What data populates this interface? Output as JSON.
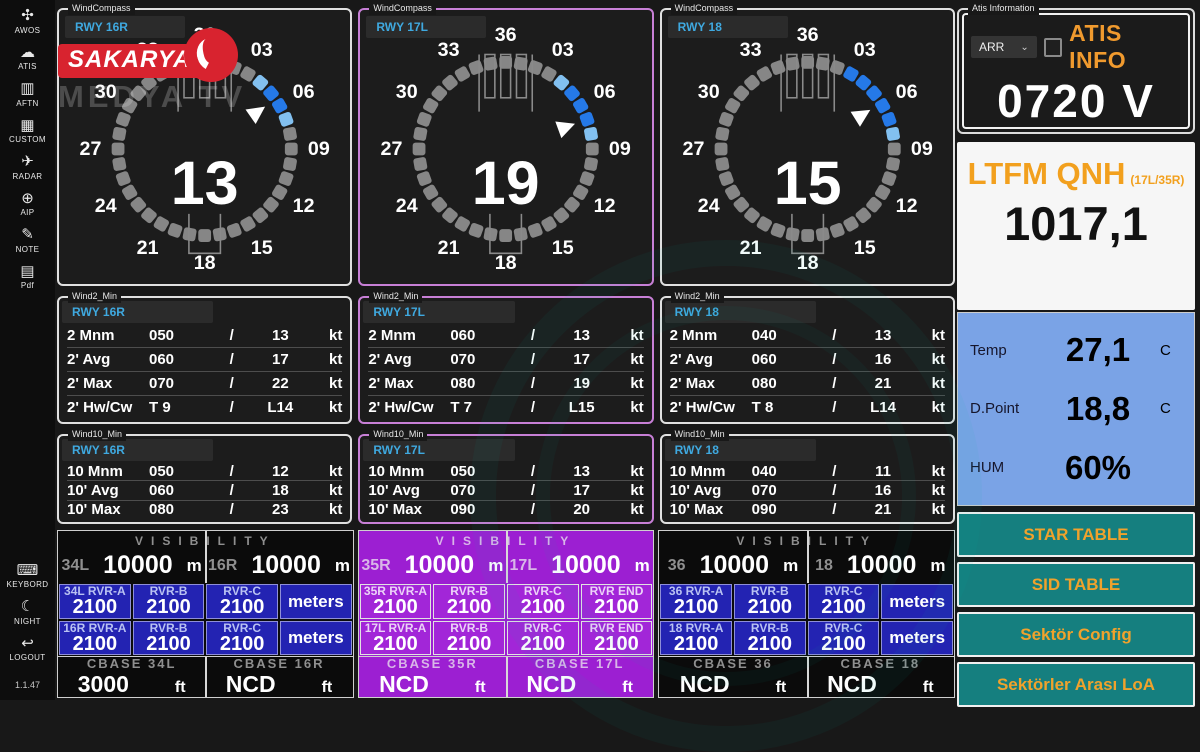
{
  "app": {
    "version": "1.1.47"
  },
  "sidebar": {
    "items": [
      {
        "label": "AWOS",
        "icon": "anemometer-icon",
        "glyph": "✣"
      },
      {
        "label": "ATIS",
        "icon": "cloud-broadcast-icon",
        "glyph": "☁"
      },
      {
        "label": "AFTN",
        "icon": "message-card-icon",
        "glyph": "▥"
      },
      {
        "label": "CUSTOM",
        "icon": "custom-settings-icon",
        "glyph": "▦"
      },
      {
        "label": "RADAR",
        "icon": "aircraft-icon",
        "glyph": "✈"
      },
      {
        "label": "AIP",
        "icon": "globe-icon",
        "glyph": "⊕"
      },
      {
        "label": "NOTE",
        "icon": "note-pencil-icon",
        "glyph": "✎"
      },
      {
        "label": "Pdf",
        "icon": "pdf-document-icon",
        "glyph": "▤"
      }
    ],
    "bottom_items": [
      {
        "label": "KEYBORD",
        "icon": "keyboard-icon",
        "glyph": "⌨"
      },
      {
        "label": "NIGHT",
        "icon": "moon-icon",
        "glyph": "☾"
      },
      {
        "label": "LOGOUT",
        "icon": "logout-person-icon",
        "glyph": "↩"
      }
    ]
  },
  "compass_labels": [
    "36",
    "03",
    "06",
    "09",
    "12",
    "15",
    "18",
    "21",
    "24",
    "27",
    "30",
    "33"
  ],
  "compasses": [
    {
      "group_label": "WindCompass",
      "runway": "RWY 16R",
      "speed": "13",
      "arrow_deg": 55,
      "segments_dark": [
        50,
        60
      ],
      "segments_light": [
        40,
        70
      ],
      "accent": "#e0e0e0"
    },
    {
      "group_label": "WindCompass",
      "runway": "RWY 17L",
      "speed": "19",
      "arrow_deg": 70,
      "segments_dark": [
        50,
        60,
        70
      ],
      "segments_light": [
        40,
        80
      ],
      "accent": "#c77fd6"
    },
    {
      "group_label": "WindCompass",
      "runway": "RWY 18",
      "speed": "15",
      "arrow_deg": 58,
      "segments_dark": [
        30,
        40,
        50,
        60,
        70
      ],
      "segments_light": [
        80
      ],
      "accent": "#e0e0e0"
    }
  ],
  "wind2": {
    "group_label": "Wind2_Min",
    "separator": "/",
    "unit": "kt",
    "panels": [
      {
        "runway": "RWY 16R",
        "accent": "#e0e0e0",
        "rows": [
          [
            "2 Mnm",
            "050",
            "13"
          ],
          [
            "2' Avg",
            "060",
            "17"
          ],
          [
            "2' Max",
            "070",
            "22"
          ],
          [
            "2' Hw/Cw",
            "T 9",
            "L14"
          ]
        ]
      },
      {
        "runway": "RWY 17L",
        "accent": "#c77fd6",
        "rows": [
          [
            "2 Mnm",
            "060",
            "13"
          ],
          [
            "2' Avg",
            "070",
            "17"
          ],
          [
            "2' Max",
            "080",
            "19"
          ],
          [
            "2' Hw/Cw",
            "T 7",
            "L15"
          ]
        ]
      },
      {
        "runway": "RWY 18",
        "accent": "#e0e0e0",
        "rows": [
          [
            "2 Mnm",
            "040",
            "13"
          ],
          [
            "2' Avg",
            "060",
            "16"
          ],
          [
            "2' Max",
            "080",
            "21"
          ],
          [
            "2' Hw/Cw",
            "T 8",
            "L14"
          ]
        ]
      }
    ]
  },
  "wind10": {
    "group_label": "Wind10_Min",
    "separator": "/",
    "unit": "kt",
    "panels": [
      {
        "runway": "RWY 16R",
        "accent": "#e0e0e0",
        "rows": [
          [
            "10 Mnm",
            "050",
            "12"
          ],
          [
            "10' Avg",
            "060",
            "18"
          ],
          [
            "10' Max",
            "080",
            "23"
          ]
        ]
      },
      {
        "runway": "RWY 17L",
        "accent": "#c77fd6",
        "rows": [
          [
            "10 Mnm",
            "050",
            "13"
          ],
          [
            "10' Avg",
            "070",
            "17"
          ],
          [
            "10' Max",
            "090",
            "20"
          ]
        ]
      },
      {
        "runway": "RWY 18",
        "accent": "#e0e0e0",
        "rows": [
          [
            "10 Mnm",
            "040",
            "11"
          ],
          [
            "10' Avg",
            "070",
            "16"
          ],
          [
            "10' Max",
            "090",
            "21"
          ]
        ]
      }
    ]
  },
  "visibility_groups": [
    {
      "style": "dark",
      "title": "VISIBILITY",
      "vis_cells": [
        {
          "label": "34L",
          "value": "10000",
          "unit": "m"
        },
        {
          "label": "16R",
          "value": "10000",
          "unit": "m"
        }
      ],
      "rvr_rows": [
        [
          {
            "label": "34L  RVR-A",
            "value": "2100"
          },
          {
            "label": "RVR-B",
            "value": "2100"
          },
          {
            "label": "RVR-C",
            "value": "2100"
          },
          {
            "unit": "meters"
          }
        ],
        [
          {
            "label": "16R  RVR-A",
            "value": "2100"
          },
          {
            "label": "RVR-B",
            "value": "2100"
          },
          {
            "label": "RVR-C",
            "value": "2100"
          },
          {
            "unit": "meters"
          }
        ]
      ],
      "cbase_cells": [
        {
          "label": "CBASE 34L",
          "value": "3000",
          "unit": "ft"
        },
        {
          "label": "CBASE 16R",
          "value": "NCD",
          "unit": "ft"
        }
      ]
    },
    {
      "style": "purple",
      "title": "VISIBILITY",
      "vis_cells": [
        {
          "label": "35R",
          "value": "10000",
          "unit": "m"
        },
        {
          "label": "17L",
          "value": "10000",
          "unit": "m"
        }
      ],
      "rvr_rows": [
        [
          {
            "label": "35R  RVR-A",
            "value": "2100"
          },
          {
            "label": "RVR-B",
            "value": "2100"
          },
          {
            "label": "RVR-C",
            "value": "2100"
          },
          {
            "label": "RVR END",
            "value": "2100"
          }
        ],
        [
          {
            "label": "17L  RVR-A",
            "value": "2100"
          },
          {
            "label": "RVR-B",
            "value": "2100"
          },
          {
            "label": "RVR-C",
            "value": "2100"
          },
          {
            "label": "RVR END",
            "value": "2100"
          }
        ]
      ],
      "cbase_cells": [
        {
          "label": "CBASE 35R",
          "value": "NCD",
          "unit": "ft"
        },
        {
          "label": "CBASE 17L",
          "value": "NCD",
          "unit": "ft"
        }
      ]
    },
    {
      "style": "dark",
      "title": "VISIBILITY",
      "vis_cells": [
        {
          "label": "36",
          "value": "10000",
          "unit": "m"
        },
        {
          "label": "18",
          "value": "10000",
          "unit": "m"
        }
      ],
      "rvr_rows": [
        [
          {
            "label": "36 RVR-A",
            "value": "2100"
          },
          {
            "label": "RVR-B",
            "value": "2100"
          },
          {
            "label": "RVR-C",
            "value": "2100"
          },
          {
            "unit": "meters"
          }
        ],
        [
          {
            "label": "18  RVR-A",
            "value": "2100"
          },
          {
            "label": "RVR-B",
            "value": "2100"
          },
          {
            "label": "RVR-C",
            "value": "2100"
          },
          {
            "unit": "meters"
          }
        ]
      ],
      "cbase_cells": [
        {
          "label": "CBASE 36",
          "value": "NCD",
          "unit": "ft"
        },
        {
          "label": "CBASE 18",
          "value": "NCD",
          "unit": "ft"
        }
      ]
    }
  ],
  "atis": {
    "group_label": "Atis Information",
    "dropdown_value": "ARR",
    "chevron_icon": "⌄",
    "title": "ATIS INFO",
    "code": "0720 V"
  },
  "qnh": {
    "title": "LTFM QNH",
    "suffix": "(17L/35R)",
    "value": "1017,1"
  },
  "met": {
    "rows": [
      {
        "label": "Temp",
        "value": "27,1",
        "unit": "C"
      },
      {
        "label": "D.Point",
        "value": "18,8",
        "unit": "C"
      },
      {
        "label": "HUM",
        "value": "60%",
        "unit": ""
      }
    ]
  },
  "buttons": [
    {
      "label": "STAR TABLE"
    },
    {
      "label": "SID TABLE"
    },
    {
      "label": "Sektör Config"
    },
    {
      "label": "Sektörler Arası LoA"
    }
  ],
  "watermark": {
    "line1": "SAKARYA",
    "line2": "MEDYA TV"
  },
  "colors": {
    "accent_orange": "#f09a2e",
    "accent_teal": "#157f7f",
    "rvr_blue": "#2323b2",
    "group_purple": "#9c1fd2",
    "runway_label_blue": "#3fa9e0",
    "highlight_dark_blue": "#2579e8",
    "highlight_light_blue": "#82c0f0",
    "met_panel_blue": "#7aa3e6"
  }
}
